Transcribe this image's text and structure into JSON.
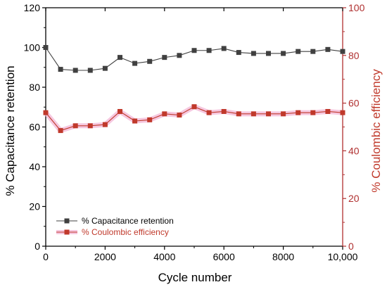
{
  "chart_data": {
    "type": "line",
    "xlabel": "Cycle number",
    "ylabel_left": "% Capacitance retention",
    "ylabel_right": "% Coulombic efficiency",
    "xlim": [
      0,
      10000
    ],
    "ylim_left": [
      0,
      120
    ],
    "ylim_right": [
      0,
      100
    ],
    "x_ticks": [
      "0",
      "2000",
      "4000",
      "6000",
      "8000",
      "10,000"
    ],
    "y_ticks_left": [
      "0",
      "20",
      "40",
      "60",
      "80",
      "100",
      "120"
    ],
    "y_ticks_right": [
      "0",
      "20",
      "40",
      "60",
      "80",
      "100"
    ],
    "x": [
      0,
      500,
      1000,
      1500,
      2000,
      2500,
      3000,
      3500,
      4000,
      4500,
      5000,
      5500,
      6000,
      6500,
      7000,
      7500,
      8000,
      8500,
      9000,
      9500,
      10000
    ],
    "series": [
      {
        "name": "% Capacitance retention",
        "axis": "left",
        "color": "#404040",
        "marker": "square",
        "values": [
          100,
          89,
          88.5,
          88.5,
          89.5,
          95,
          92,
          93,
          95,
          96,
          98.5,
          98.5,
          99.5,
          97.5,
          97,
          97,
          97,
          98,
          98,
          99,
          98
        ]
      },
      {
        "name": "% Coulombic efficiency",
        "axis": "right",
        "color": "#c0392b",
        "marker": "square",
        "values": [
          56,
          48.5,
          50.5,
          50.5,
          51,
          56.5,
          52.5,
          53,
          55.5,
          55,
          58.5,
          56,
          56.5,
          55.5,
          55.5,
          55.5,
          55.5,
          56,
          56,
          56.5,
          56
        ]
      }
    ],
    "legend_position": "bottom-left",
    "grid": false,
    "colors": {
      "left_axis": "#000000",
      "right_axis": "#b03030",
      "right_label": "#c0392b"
    }
  }
}
